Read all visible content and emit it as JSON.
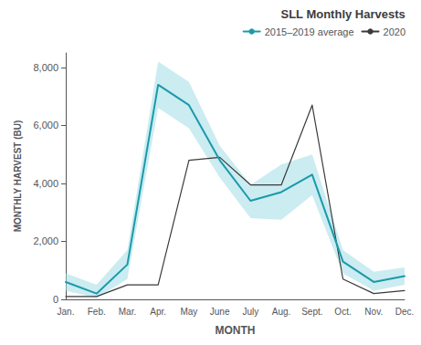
{
  "chart_data": {
    "type": "line",
    "title": "SLL Monthly Harvests",
    "xlabel": "MONTH",
    "ylabel": "MONTHLY HARVEST (BU)",
    "categories": [
      "Jan.",
      "Feb.",
      "Mar.",
      "Apr.",
      "May",
      "June",
      "July",
      "Aug.",
      "Sept.",
      "Oct.",
      "Nov.",
      "Dec."
    ],
    "series": [
      {
        "name": "2015–2019 average",
        "color": "#1a9aaa",
        "values": [
          600,
          200,
          1200,
          7400,
          6700,
          4800,
          3400,
          3700,
          4300,
          1300,
          600,
          800
        ]
      },
      {
        "name": "2020",
        "color": "#3a3a3a",
        "values": [
          100,
          100,
          500,
          500,
          4800,
          4900,
          3950,
          3950,
          6700,
          700,
          200,
          300
        ]
      }
    ],
    "band": {
      "lower": [
        300,
        50,
        700,
        6600,
        5900,
        4200,
        2800,
        2750,
        3600,
        900,
        300,
        500
      ],
      "upper": [
        900,
        500,
        1700,
        8200,
        7500,
        5300,
        3950,
        4650,
        5000,
        1700,
        950,
        1100
      ],
      "color": "#a0dde6"
    },
    "ylim": [
      0,
      8500
    ],
    "yticks": [
      0,
      {
        "value": 2000,
        "label": "2,000"
      },
      {
        "value": 4000,
        "label": "4,000"
      },
      {
        "value": 6000,
        "label": "6,000"
      },
      {
        "value": 8000,
        "label": "8,000"
      }
    ],
    "grid": false,
    "legend": "upper right"
  }
}
